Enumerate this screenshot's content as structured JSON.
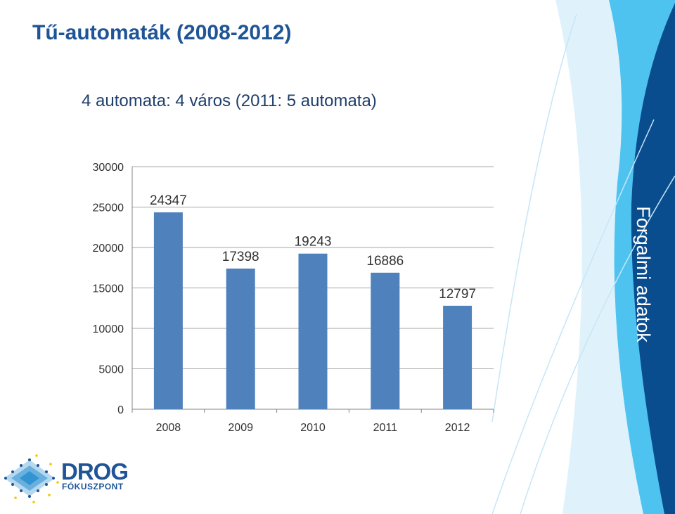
{
  "slide": {
    "title": "Tű-automaták (2008-2012)",
    "subtitle": "4 automata: 4 város (2011: 5 automata)",
    "side_label": "Forgalmi adatok"
  },
  "logo": {
    "main": "DROG",
    "sub": "FÓKUSZPONT"
  },
  "colors": {
    "title": "#1f5597",
    "bar": "#4f81bd",
    "accent_dark": "#0a4d8f",
    "accent_light": "#4fc3f0"
  },
  "chart_data": {
    "type": "bar",
    "categories": [
      "2008",
      "2009",
      "2010",
      "2011",
      "2012"
    ],
    "values": [
      24347,
      17398,
      19243,
      16886,
      12797
    ],
    "data_labels": [
      "24347",
      "17398",
      "19243",
      "16886",
      "12797"
    ],
    "yticks": [
      "0",
      "5000",
      "10000",
      "15000",
      "20000",
      "25000",
      "30000"
    ],
    "ylim": [
      0,
      30000
    ],
    "grid": true,
    "legend": "none"
  }
}
